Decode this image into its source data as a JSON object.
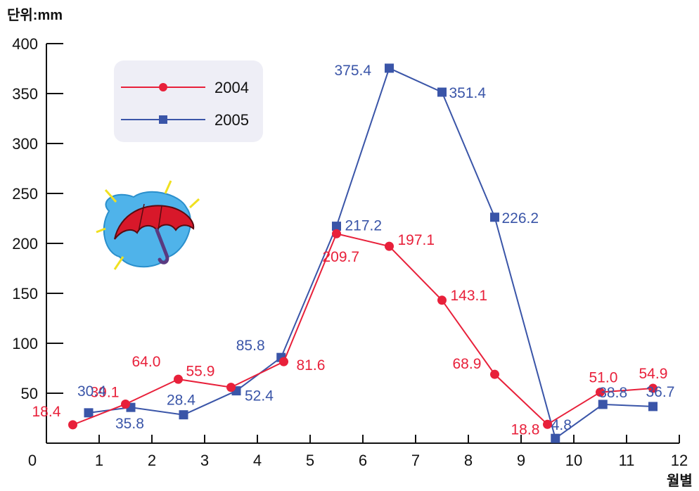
{
  "chart_data": {
    "type": "line",
    "unit_label": "단위:mm",
    "x_axis_label": "월별",
    "x_ticks": [
      "0",
      "1",
      "2",
      "3",
      "4",
      "5",
      "6",
      "7",
      "8",
      "9",
      "10",
      "11",
      "12"
    ],
    "y_ticks": [
      "50",
      "100",
      "150",
      "200",
      "250",
      "300",
      "350",
      "400"
    ],
    "ylim": [
      0,
      400
    ],
    "xlim": [
      0,
      12
    ],
    "grid": false,
    "legend_placement": "top-left",
    "series": [
      {
        "name": "2004",
        "color": "#e8203a",
        "marker": "circle",
        "x": [
          0.5,
          1.5,
          2.5,
          3.5,
          4.5,
          5.5,
          6.5,
          7.5,
          8.5,
          9.5,
          10.5,
          11.5
        ],
        "values": [
          18.4,
          39.1,
          64.0,
          55.9,
          81.6,
          209.7,
          197.1,
          143.1,
          68.9,
          18.8,
          51.0,
          54.9
        ],
        "labels": [
          "18.4",
          "39.1",
          "64.0",
          "55.9",
          "81.6",
          "209.7",
          "197.1",
          "143.1",
          "68.9",
          "18.8",
          "51.0",
          "54.9"
        ]
      },
      {
        "name": "2005",
        "color": "#3a55a8",
        "marker": "square",
        "x": [
          0.8,
          1.6,
          2.6,
          3.6,
          4.45,
          5.5,
          6.5,
          7.5,
          8.5,
          9.65,
          10.55,
          11.5
        ],
        "values": [
          30.4,
          35.8,
          28.4,
          52.4,
          85.8,
          217.2,
          375.4,
          351.4,
          226.2,
          4.8,
          38.8,
          36.7
        ],
        "labels": [
          "30.4",
          "35.8",
          "28.4",
          "52.4",
          "85.8",
          "217.2",
          "375.4",
          "351.4",
          "226.2",
          "4.8",
          "38.8",
          "36.7"
        ]
      }
    ]
  }
}
